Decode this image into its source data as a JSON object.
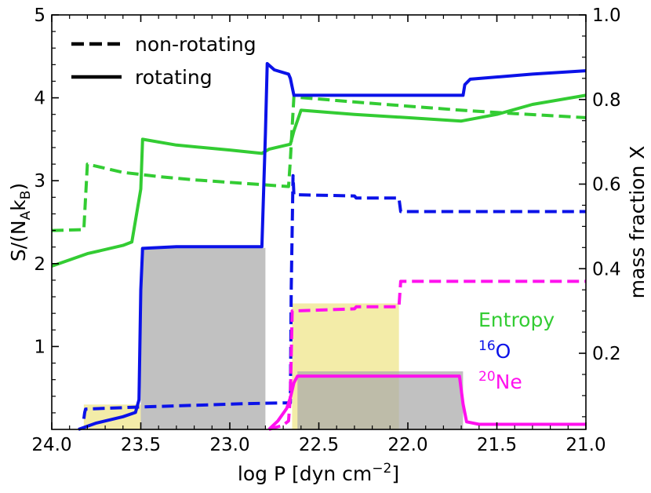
{
  "chart_data": {
    "type": "line",
    "xlabel": "log P [dyn cm",
    "xlabel_sup": "−2",
    "xlabel_close": "]",
    "ylabel_left": "S/(N",
    "ylabel_left_sub1": "A",
    "ylabel_left_mid": "k",
    "ylabel_left_sub2": "B",
    "ylabel_left_close": ")",
    "ylabel_right": "mass fraction X",
    "x_reversed": true,
    "xlim": [
      24.0,
      21.0
    ],
    "ylim_left": [
      0,
      5
    ],
    "ylim_right": [
      0.02,
      1.0
    ],
    "x_ticks": [
      {
        "v": 24.0,
        "label": "24.0"
      },
      {
        "v": 23.5,
        "label": "23.5"
      },
      {
        "v": 23.0,
        "label": "23.0"
      },
      {
        "v": 22.5,
        "label": "22.5"
      },
      {
        "v": 22.0,
        "label": "22.0"
      },
      {
        "v": 21.5,
        "label": "21.5"
      },
      {
        "v": 21.0,
        "label": "21.0"
      }
    ],
    "y_left_ticks": [
      {
        "v": 1,
        "label": "1"
      },
      {
        "v": 2,
        "label": "2"
      },
      {
        "v": 3,
        "label": "3"
      },
      {
        "v": 4,
        "label": "4"
      },
      {
        "v": 5,
        "label": "5"
      }
    ],
    "y_right_ticks": [
      {
        "v": 0.2,
        "label": "0.2"
      },
      {
        "v": 0.4,
        "label": "0.4"
      },
      {
        "v": 0.6,
        "label": "0.6"
      },
      {
        "v": 0.8,
        "label": "0.8"
      },
      {
        "v": 1.0,
        "label": "1.0"
      }
    ],
    "legend": {
      "placement": "top-left",
      "entries": [
        {
          "label": "non-rotating",
          "style": "dashed"
        },
        {
          "label": "rotating",
          "style": "solid"
        }
      ]
    },
    "annotations": [
      {
        "text": "Entropy",
        "color": "#33cc33"
      },
      {
        "sup": "16",
        "text": "O",
        "color": "#0b12e8"
      },
      {
        "sup": "20",
        "text": "Ne",
        "color": "#ff11ee"
      }
    ],
    "colors": {
      "entropy": "#33cc33",
      "oxygen": "#0b12e8",
      "neon": "#ff11ee",
      "gray_region": "#a9a9a9",
      "yellow_region": "#ece27a"
    },
    "shaded_regions": [
      {
        "color": "yellow",
        "x": [
          23.82,
          23.5
        ],
        "y_left": 0.3
      },
      {
        "color": "gray",
        "x": [
          23.5,
          22.8
        ],
        "y_left": 2.19
      },
      {
        "color": "yellow",
        "x": [
          22.65,
          22.05
        ],
        "y_left": 1.52
      },
      {
        "color": "gray",
        "x": [
          22.62,
          21.69
        ],
        "y_left": 0.7
      }
    ],
    "series": [
      {
        "key": "entropy",
        "axis": "left",
        "style": "dashed",
        "x": [
          24.0,
          23.82,
          23.81,
          23.8,
          23.6,
          23.4,
          23.2,
          23.0,
          22.8,
          22.67,
          22.66,
          22.65,
          22.64,
          22.3,
          22.0,
          21.7,
          21.4,
          21.0
        ],
        "y": [
          2.4,
          2.41,
          2.8,
          3.2,
          3.1,
          3.05,
          3.01,
          2.98,
          2.95,
          2.93,
          3.25,
          3.65,
          4.01,
          3.95,
          3.9,
          3.85,
          3.81,
          3.76
        ]
      },
      {
        "key": "entropy",
        "axis": "left",
        "style": "solid",
        "x": [
          24.0,
          23.8,
          23.6,
          23.55,
          23.5,
          23.49,
          23.3,
          23.0,
          22.82,
          22.78,
          22.7,
          22.66,
          22.64,
          22.6,
          22.3,
          22.0,
          21.7,
          21.5,
          21.3,
          21.0
        ],
        "y": [
          1.97,
          2.12,
          2.22,
          2.26,
          2.9,
          3.5,
          3.43,
          3.37,
          3.33,
          3.38,
          3.42,
          3.44,
          3.6,
          3.85,
          3.8,
          3.76,
          3.72,
          3.8,
          3.92,
          4.03
        ]
      },
      {
        "key": "oxygen",
        "axis": "right",
        "style": "dashed",
        "x": [
          23.82,
          23.815,
          23.81,
          23.5,
          23.2,
          22.9,
          22.66,
          22.655,
          22.645,
          22.64,
          22.3,
          22.29,
          22.05,
          22.04,
          21.0
        ],
        "y": [
          0.045,
          0.06,
          0.068,
          0.073,
          0.077,
          0.081,
          0.083,
          0.35,
          0.62,
          0.575,
          0.572,
          0.567,
          0.567,
          0.535,
          0.535
        ]
      },
      {
        "key": "oxygen",
        "axis": "right",
        "style": "solid",
        "x": [
          23.85,
          23.75,
          23.6,
          23.53,
          23.51,
          23.5,
          23.49,
          23.3,
          22.82,
          22.8,
          22.79,
          22.75,
          22.67,
          22.66,
          22.64,
          22.63,
          22.62,
          21.69,
          21.68,
          21.65,
          21.3,
          21.0
        ],
        "y": [
          0.02,
          0.035,
          0.05,
          0.06,
          0.09,
          0.35,
          0.448,
          0.452,
          0.452,
          0.72,
          0.885,
          0.87,
          0.86,
          0.85,
          0.81,
          0.81,
          0.81,
          0.81,
          0.835,
          0.848,
          0.86,
          0.868
        ]
      },
      {
        "key": "neon",
        "axis": "right",
        "style": "dashed",
        "x": [
          22.78,
          22.7,
          22.67,
          22.66,
          22.65,
          22.64,
          22.3,
          22.29,
          22.05,
          22.04,
          21.0
        ],
        "y": [
          0.02,
          0.03,
          0.04,
          0.1,
          0.3,
          0.3,
          0.305,
          0.31,
          0.31,
          0.37,
          0.37
        ]
      },
      {
        "key": "neon",
        "axis": "right",
        "style": "solid",
        "x": [
          22.78,
          22.73,
          22.68,
          22.66,
          22.64,
          22.62,
          22.4,
          22.0,
          21.71,
          21.69,
          21.67,
          21.6,
          21.0
        ],
        "y": [
          0.02,
          0.04,
          0.07,
          0.095,
          0.13,
          0.146,
          0.146,
          0.146,
          0.146,
          0.08,
          0.038,
          0.032,
          0.032
        ]
      }
    ]
  }
}
